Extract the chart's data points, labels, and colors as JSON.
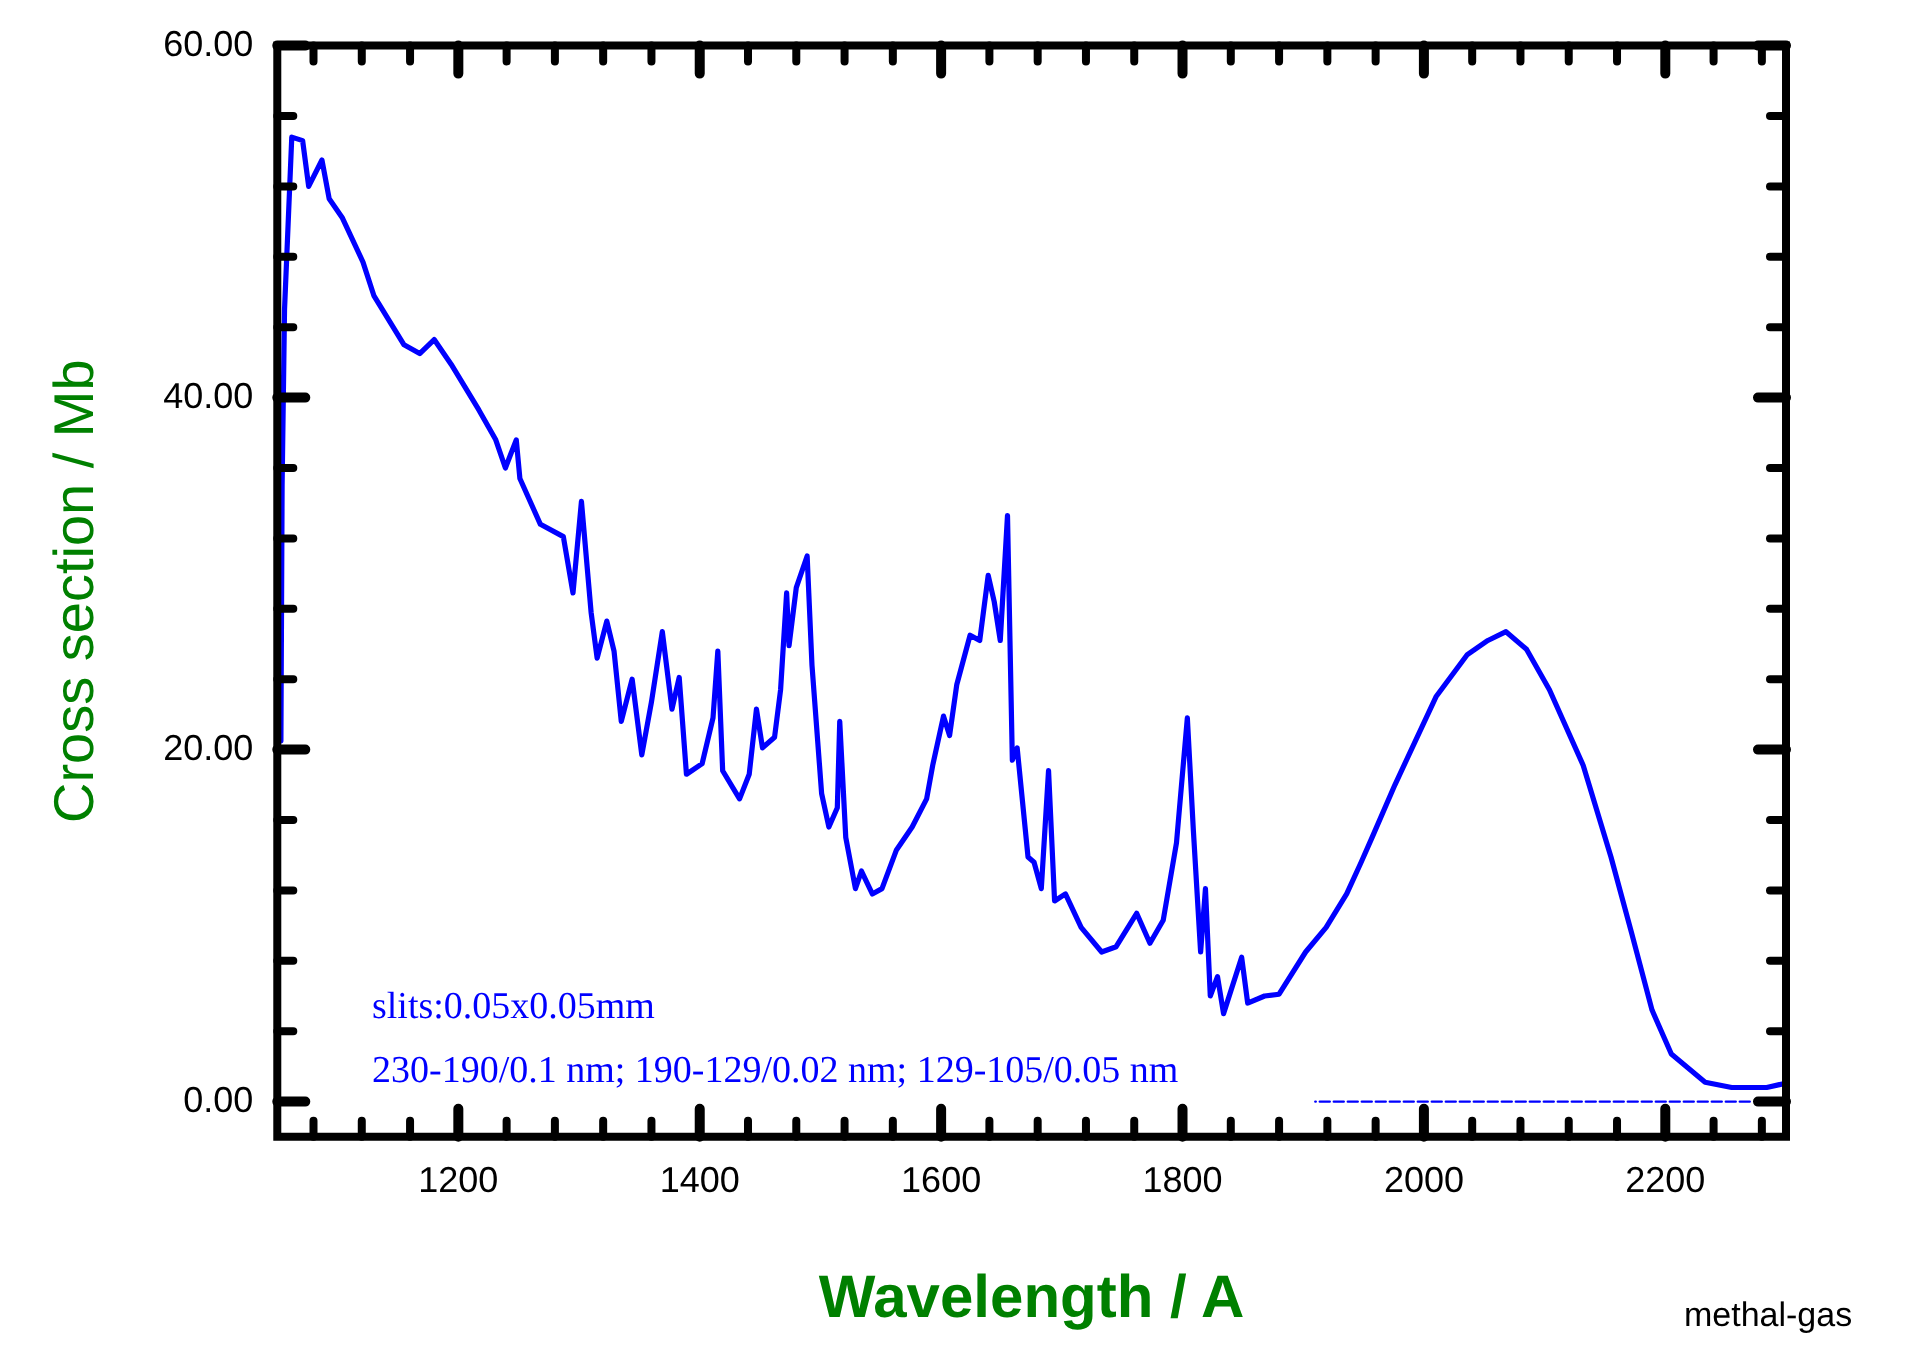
{
  "chart_data": {
    "type": "line",
    "xlabel": "Wavelength / A",
    "ylabel": "Cross section / Mb",
    "marker": "none",
    "annotations": [
      "slits:0.05x0.05mm",
      "230-190/0.1 nm; 190-129/0.02 nm; 129-105/0.05 nm",
      "methal-gas"
    ],
    "xlim": [
      1050,
      2300
    ],
    "ylim": [
      -2,
      60
    ],
    "xticks": [
      {
        "value": 1080,
        "label": null
      },
      {
        "value": 1120,
        "label": null
      },
      {
        "value": 1160,
        "label": null
      },
      1200,
      {
        "value": 1240,
        "label": null
      },
      {
        "value": 1280,
        "label": null
      },
      {
        "value": 1320,
        "label": null
      },
      {
        "value": 1360,
        "label": null
      },
      1400,
      {
        "value": 1440,
        "label": null
      },
      {
        "value": 1480,
        "label": null
      },
      {
        "value": 1520,
        "label": null
      },
      {
        "value": 1560,
        "label": null
      },
      1600,
      {
        "value": 1640,
        "label": null
      },
      {
        "value": 1680,
        "label": null
      },
      {
        "value": 1720,
        "label": null
      },
      {
        "value": 1760,
        "label": null
      },
      1800,
      {
        "value": 1840,
        "label": null
      },
      {
        "value": 1880,
        "label": null
      },
      {
        "value": 1920,
        "label": null
      },
      {
        "value": 1960,
        "label": null
      },
      2000,
      {
        "value": 2040,
        "label": null
      },
      {
        "value": 2080,
        "label": null
      },
      {
        "value": 2120,
        "label": null
      },
      {
        "value": 2160,
        "label": null
      },
      2200,
      {
        "value": 2240,
        "label": null
      },
      {
        "value": 2280,
        "label": null
      }
    ],
    "yticks": [
      {
        "value": 0,
        "label": "0.00"
      },
      {
        "value": 4,
        "label": null
      },
      {
        "value": 8,
        "label": null
      },
      {
        "value": 12,
        "label": null
      },
      {
        "value": 16,
        "label": null
      },
      {
        "value": 20,
        "label": "20.00"
      },
      {
        "value": 24,
        "label": null
      },
      {
        "value": 28,
        "label": null
      },
      {
        "value": 32,
        "label": null
      },
      {
        "value": 36,
        "label": null
      },
      {
        "value": 40,
        "label": "40.00"
      },
      {
        "value": 44,
        "label": null
      },
      {
        "value": 48,
        "label": null
      },
      {
        "value": 52,
        "label": null
      },
      {
        "value": 56,
        "label": null
      },
      {
        "value": 60,
        "label": "60.00"
      }
    ],
    "series": [
      {
        "color": "#0000ff",
        "x": [
          1053,
          1054,
          1056,
          1059,
          1062,
          1071,
          1076,
          1087,
          1093,
          1104,
          1121,
          1130,
          1155,
          1168,
          1180,
          1194,
          1217,
          1231,
          1239,
          1248,
          1251,
          1268,
          1287,
          1295,
          1302,
          1310,
          1315,
          1323,
          1329,
          1335,
          1344,
          1352,
          1360,
          1369,
          1377,
          1383,
          1389,
          1402,
          1411,
          1415,
          1419,
          1433,
          1441,
          1447,
          1452,
          1462,
          1467,
          1472,
          1474,
          1480,
          1489,
          1493,
          1501,
          1507,
          1514,
          1516,
          1521,
          1529,
          1534,
          1543,
          1551,
          1563,
          1576,
          1588,
          1593,
          1602,
          1607,
          1613,
          1624,
          1632,
          1639,
          1644,
          1649,
          1655,
          1659,
          1663,
          1672,
          1677,
          1683,
          1689,
          1694,
          1703,
          1716,
          1733,
          1745,
          1762,
          1773,
          1784,
          1795,
          1804,
          1809,
          1815,
          1819,
          1823,
          1829,
          1834,
          1849,
          1854,
          1868,
          1880,
          1902,
          1919,
          1936,
          1948,
          1957,
          1976,
          2010,
          2036,
          2053,
          2068,
          2085,
          2104,
          2132,
          2155,
          2172,
          2189,
          2205,
          2233,
          2255,
          2284,
          2297
        ],
        "values": [
          20.5,
          35,
          45,
          49.9,
          54.8,
          54.6,
          52.0,
          53.5,
          51.3,
          50.2,
          47.7,
          45.8,
          43.0,
          42.5,
          43.3,
          41.9,
          39.3,
          37.6,
          36.0,
          37.6,
          35.4,
          32.8,
          32.1,
          28.9,
          34.1,
          27.8,
          25.2,
          27.3,
          25.6,
          21.6,
          24.0,
          19.7,
          22.7,
          26.7,
          22.3,
          24.1,
          18.6,
          19.2,
          21.8,
          25.6,
          18.8,
          17.2,
          18.6,
          22.3,
          20.1,
          20.7,
          23.4,
          28.9,
          25.9,
          29.2,
          31.0,
          24.8,
          17.5,
          15.6,
          16.7,
          21.6,
          15.0,
          12.1,
          13.1,
          11.8,
          12.1,
          14.3,
          15.6,
          17.2,
          19.1,
          21.9,
          20.8,
          23.7,
          26.5,
          26.2,
          29.9,
          28.4,
          26.2,
          33.3,
          19.4,
          20.1,
          13.9,
          13.6,
          12.1,
          18.8,
          11.4,
          11.8,
          9.9,
          8.5,
          8.8,
          10.7,
          9.0,
          10.3,
          14.7,
          21.8,
          15.4,
          8.5,
          12.1,
          6.0,
          7.1,
          5.0,
          8.2,
          5.6,
          6.0,
          6.1,
          8.5,
          9.9,
          11.8,
          13.6,
          15.0,
          18.0,
          23.0,
          25.4,
          26.2,
          26.7,
          25.7,
          23.4,
          19.1,
          13.9,
          9.6,
          5.2,
          2.7,
          1.1,
          0.8,
          0.8,
          1.0
        ]
      },
      {
        "type": "line",
        "color": "#0000ff",
        "line_style": "dashed",
        "x": [
          1910,
          2270
        ],
        "values": [
          0,
          0
        ]
      }
    ]
  }
}
